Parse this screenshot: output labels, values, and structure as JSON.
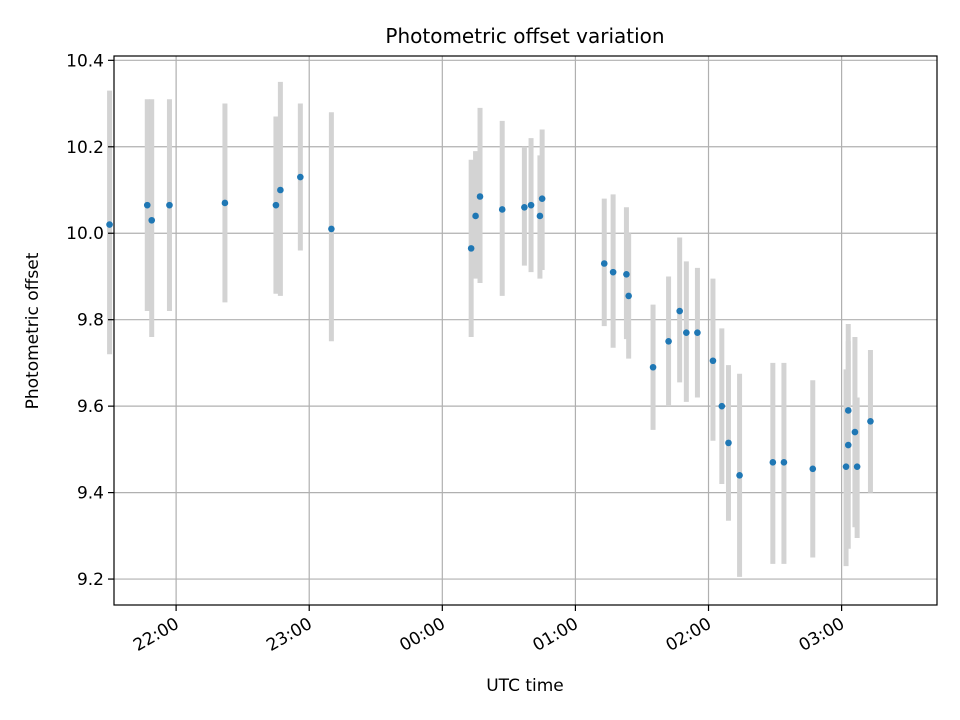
{
  "chart_data": {
    "type": "scatter",
    "title": "Photometric offset variation",
    "xlabel": "UTC time",
    "ylabel": "Photometric offset",
    "x_axis_type": "time",
    "xlim": [
      "21:32",
      "03:43"
    ],
    "ylim": [
      9.14,
      10.41
    ],
    "grid": true,
    "xticks": [
      "22:00",
      "23:00",
      "00:00",
      "01:00",
      "02:00",
      "03:00"
    ],
    "yticks": [
      9.2,
      9.4,
      9.6,
      9.8,
      10.0,
      10.2,
      10.4
    ],
    "marker_color": "#1f77b4",
    "errorbar_color": "#d3d3d3",
    "points": [
      {
        "t": "21:30",
        "y": 10.02,
        "lo": 9.72,
        "hi": 10.33
      },
      {
        "t": "21:47",
        "y": 10.065,
        "lo": 9.82,
        "hi": 10.31
      },
      {
        "t": "21:49",
        "y": 10.03,
        "lo": 9.76,
        "hi": 10.31
      },
      {
        "t": "21:57",
        "y": 10.065,
        "lo": 9.82,
        "hi": 10.31
      },
      {
        "t": "22:22",
        "y": 10.07,
        "lo": 9.84,
        "hi": 10.3
      },
      {
        "t": "22:45",
        "y": 10.065,
        "lo": 9.86,
        "hi": 10.27
      },
      {
        "t": "22:47",
        "y": 10.1,
        "lo": 9.855,
        "hi": 10.35
      },
      {
        "t": "22:56",
        "y": 10.13,
        "lo": 9.96,
        "hi": 10.3
      },
      {
        "t": "23:10",
        "y": 10.01,
        "lo": 9.75,
        "hi": 10.28
      },
      {
        "t": "00:13",
        "y": 9.965,
        "lo": 9.76,
        "hi": 10.17
      },
      {
        "t": "00:15",
        "y": 10.04,
        "lo": 9.895,
        "hi": 10.19
      },
      {
        "t": "00:17",
        "y": 10.085,
        "lo": 9.885,
        "hi": 10.29
      },
      {
        "t": "00:27",
        "y": 10.055,
        "lo": 9.855,
        "hi": 10.26
      },
      {
        "t": "00:37",
        "y": 10.06,
        "lo": 9.925,
        "hi": 10.2
      },
      {
        "t": "00:40",
        "y": 10.065,
        "lo": 9.91,
        "hi": 10.22
      },
      {
        "t": "00:44",
        "y": 10.04,
        "lo": 9.895,
        "hi": 10.18
      },
      {
        "t": "00:45",
        "y": 10.08,
        "lo": 9.915,
        "hi": 10.24
      },
      {
        "t": "01:13",
        "y": 9.93,
        "lo": 9.785,
        "hi": 10.08
      },
      {
        "t": "01:17",
        "y": 9.91,
        "lo": 9.735,
        "hi": 10.09
      },
      {
        "t": "01:23",
        "y": 9.905,
        "lo": 9.755,
        "hi": 10.06
      },
      {
        "t": "01:24",
        "y": 9.855,
        "lo": 9.71,
        "hi": 10.0
      },
      {
        "t": "01:35",
        "y": 9.69,
        "lo": 9.545,
        "hi": 9.835
      },
      {
        "t": "01:42",
        "y": 9.75,
        "lo": 9.6,
        "hi": 9.9
      },
      {
        "t": "01:47",
        "y": 9.82,
        "lo": 9.655,
        "hi": 9.99
      },
      {
        "t": "01:50",
        "y": 9.77,
        "lo": 9.61,
        "hi": 9.935
      },
      {
        "t": "01:55",
        "y": 9.77,
        "lo": 9.62,
        "hi": 9.92
      },
      {
        "t": "02:02",
        "y": 9.705,
        "lo": 9.52,
        "hi": 9.895
      },
      {
        "t": "02:06",
        "y": 9.6,
        "lo": 9.42,
        "hi": 9.78
      },
      {
        "t": "02:09",
        "y": 9.515,
        "lo": 9.335,
        "hi": 9.695
      },
      {
        "t": "02:14",
        "y": 9.44,
        "lo": 9.205,
        "hi": 9.675
      },
      {
        "t": "02:29",
        "y": 9.47,
        "lo": 9.235,
        "hi": 9.7
      },
      {
        "t": "02:34",
        "y": 9.47,
        "lo": 9.235,
        "hi": 9.7
      },
      {
        "t": "02:47",
        "y": 9.455,
        "lo": 9.25,
        "hi": 9.66
      },
      {
        "t": "03:02",
        "y": 9.46,
        "lo": 9.23,
        "hi": 9.685
      },
      {
        "t": "03:03",
        "y": 9.51,
        "lo": 9.27,
        "hi": 9.75
      },
      {
        "t": "03:03",
        "y": 9.59,
        "lo": 9.395,
        "hi": 9.79
      },
      {
        "t": "03:06",
        "y": 9.54,
        "lo": 9.32,
        "hi": 9.76
      },
      {
        "t": "03:07",
        "y": 9.46,
        "lo": 9.295,
        "hi": 9.62
      },
      {
        "t": "03:13",
        "y": 9.565,
        "lo": 9.4,
        "hi": 9.73
      }
    ]
  }
}
